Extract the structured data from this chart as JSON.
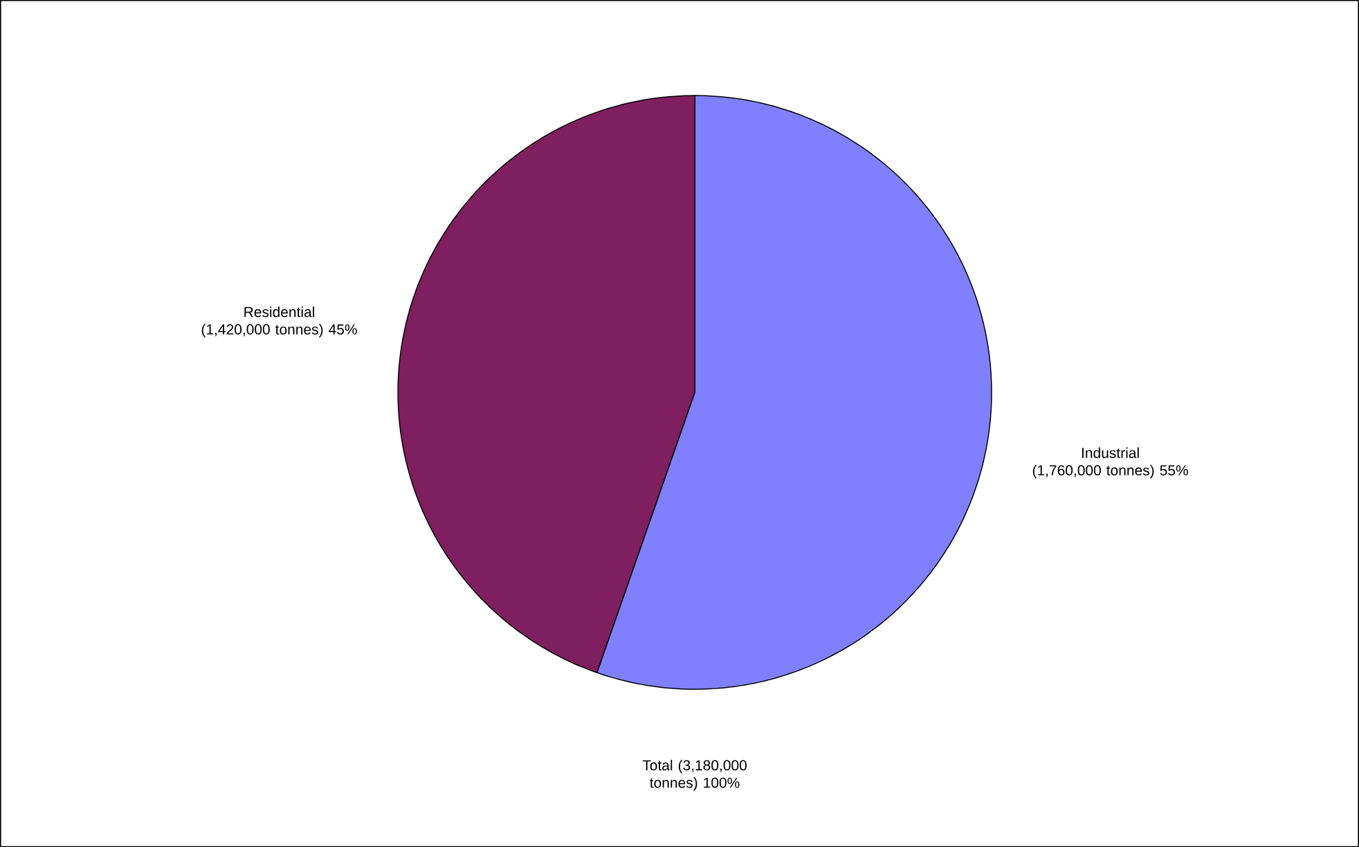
{
  "chart_data": {
    "type": "pie",
    "categories": [
      "Industrial",
      "Residential"
    ],
    "values": [
      1760000,
      1420000
    ],
    "colors": [
      "#8080ff",
      "#7f1f5f"
    ],
    "value_labels": [
      "(1,760,000 tonnes) 55%",
      "(1,420,000 tonnes) 45%"
    ],
    "annotations": [
      "Total (3,180,000 tonnes) 100%"
    ]
  }
}
